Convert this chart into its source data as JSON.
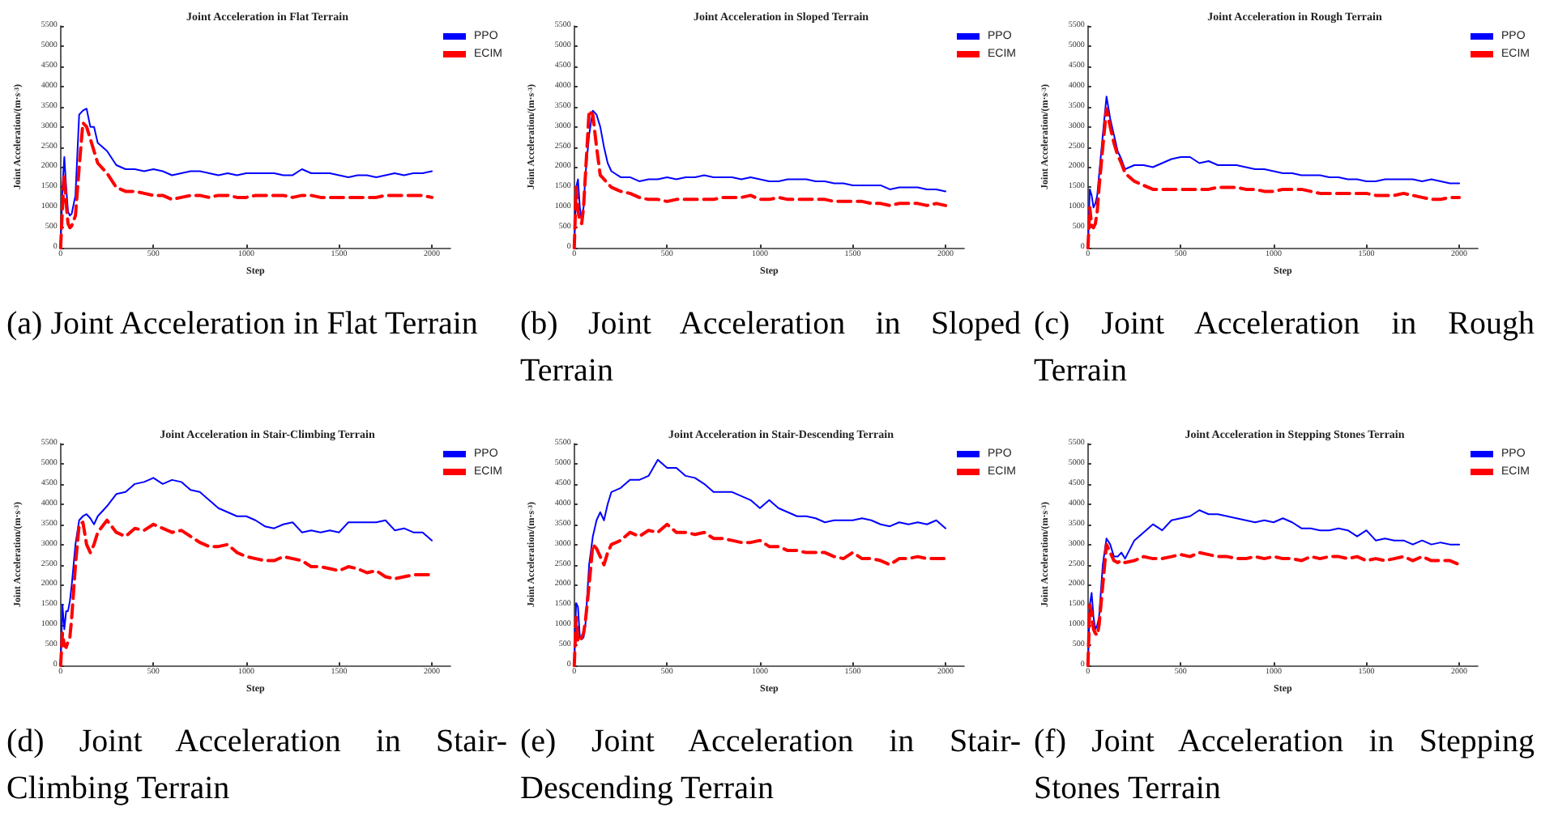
{
  "chart_data": [
    {
      "type": "line",
      "title": "Joint Acceleration in Flat Terrain",
      "xlabel": "Step",
      "ylabel": "Joint Acceleration/(m·s$^{-3}$)",
      "annotations": [
        "(a) Joint Acceleration in Flat Terrain"
      ],
      "xlim": [
        0,
        2100
      ],
      "xticks": [
        0,
        500,
        1000,
        1500,
        2000
      ],
      "ylim": [
        0,
        5500
      ],
      "yticks": [
        0,
        500,
        1000,
        1500,
        2000,
        2500,
        3000,
        3500,
        4000,
        4500,
        5000,
        5500
      ],
      "legend": "top right",
      "grid": false,
      "x": [
        0,
        10,
        20,
        30,
        40,
        50,
        60,
        80,
        100,
        120,
        140,
        160,
        180,
        200,
        250,
        300,
        350,
        400,
        450,
        500,
        550,
        600,
        650,
        700,
        750,
        800,
        850,
        900,
        950,
        1000,
        1050,
        1100,
        1150,
        1200,
        1250,
        1300,
        1350,
        1400,
        1450,
        1500,
        1550,
        1600,
        1650,
        1700,
        1750,
        1800,
        1850,
        1900,
        1950,
        2000
      ],
      "series": [
        {
          "name": "PPO",
          "color": "#0000ff",
          "line_style": "solid",
          "values": [
            0,
            1500,
            2250,
            1500,
            900,
            800,
            850,
            1300,
            3300,
            3400,
            3450,
            3000,
            3000,
            2600,
            2400,
            2050,
            1950,
            1950,
            1900,
            1950,
            1900,
            1800,
            1850,
            1900,
            1900,
            1850,
            1800,
            1850,
            1800,
            1850,
            1850,
            1850,
            1850,
            1800,
            1800,
            1950,
            1850,
            1850,
            1850,
            1800,
            1750,
            1800,
            1800,
            1750,
            1800,
            1850,
            1800,
            1850,
            1850,
            1900
          ]
        },
        {
          "name": "ECIM",
          "color": "#ff0000",
          "line_style": "dashed",
          "values": [
            0,
            1000,
            1800,
            1100,
            600,
            500,
            550,
            800,
            2000,
            3100,
            3000,
            2700,
            2400,
            2100,
            1850,
            1500,
            1400,
            1400,
            1350,
            1300,
            1300,
            1200,
            1250,
            1300,
            1300,
            1250,
            1300,
            1300,
            1250,
            1250,
            1300,
            1300,
            1300,
            1300,
            1250,
            1300,
            1300,
            1250,
            1250,
            1250,
            1250,
            1250,
            1250,
            1250,
            1300,
            1300,
            1300,
            1300,
            1300,
            1250
          ]
        }
      ]
    },
    {
      "type": "line",
      "title": "Joint Acceleration in Sloped Terrain",
      "xlabel": "Step",
      "ylabel": "Joint Acceleration/(m·s$^{-3}$)",
      "annotations": [
        "(b) Joint Acceleration in Sloped Terrain"
      ],
      "xlim": [
        0,
        2100
      ],
      "xticks": [
        0,
        500,
        1000,
        1500,
        2000
      ],
      "ylim": [
        0,
        5500
      ],
      "yticks": [
        0,
        500,
        1000,
        1500,
        2000,
        2500,
        3000,
        3500,
        4000,
        4500,
        5000,
        5500
      ],
      "legend": "top right",
      "grid": false,
      "x": [
        0,
        10,
        20,
        30,
        40,
        50,
        60,
        80,
        100,
        120,
        140,
        160,
        180,
        200,
        250,
        300,
        350,
        400,
        450,
        500,
        550,
        600,
        650,
        700,
        750,
        800,
        850,
        900,
        950,
        1000,
        1050,
        1100,
        1150,
        1200,
        1250,
        1300,
        1350,
        1400,
        1450,
        1500,
        1550,
        1600,
        1650,
        1700,
        1750,
        1800,
        1850,
        1900,
        1950,
        2000
      ],
      "series": [
        {
          "name": "PPO",
          "color": "#0000ff",
          "line_style": "solid",
          "values": [
            0,
            1500,
            1700,
            1000,
            700,
            1000,
            1800,
            2800,
            3400,
            3300,
            3000,
            2500,
            2100,
            1900,
            1750,
            1750,
            1650,
            1700,
            1700,
            1750,
            1700,
            1750,
            1750,
            1800,
            1750,
            1750,
            1750,
            1700,
            1750,
            1700,
            1650,
            1650,
            1700,
            1700,
            1700,
            1650,
            1650,
            1600,
            1600,
            1550,
            1550,
            1550,
            1550,
            1450,
            1500,
            1500,
            1500,
            1450,
            1450,
            1400
          ]
        },
        {
          "name": "ECIM",
          "color": "#ff0000",
          "line_style": "dashed",
          "values": [
            0,
            1500,
            900,
            700,
            600,
            1000,
            1800,
            3400,
            3300,
            2500,
            1800,
            1700,
            1600,
            1500,
            1400,
            1350,
            1250,
            1200,
            1200,
            1150,
            1200,
            1200,
            1200,
            1200,
            1200,
            1250,
            1250,
            1250,
            1300,
            1200,
            1200,
            1250,
            1200,
            1200,
            1200,
            1200,
            1200,
            1150,
            1150,
            1150,
            1150,
            1100,
            1100,
            1050,
            1100,
            1100,
            1100,
            1050,
            1100,
            1050
          ]
        }
      ]
    },
    {
      "type": "line",
      "title": "Joint Acceleration in Rough Terrain",
      "xlabel": "Step",
      "ylabel": "Joint Acceleration/(m·s$^{-3}$)",
      "annotations": [
        "(c) Joint Acceleration in Rough Terrain"
      ],
      "xlim": [
        0,
        2100
      ],
      "xticks": [
        0,
        500,
        1000,
        1500,
        2000
      ],
      "ylim": [
        0,
        5500
      ],
      "yticks": [
        0,
        500,
        1000,
        1500,
        2000,
        2500,
        3000,
        3500,
        4000,
        4500,
        5000,
        5500
      ],
      "legend": "top right",
      "grid": false,
      "x": [
        0,
        10,
        20,
        30,
        40,
        50,
        60,
        80,
        100,
        120,
        140,
        160,
        180,
        200,
        250,
        300,
        350,
        400,
        450,
        500,
        550,
        600,
        650,
        700,
        750,
        800,
        850,
        900,
        950,
        1000,
        1050,
        1100,
        1150,
        1200,
        1250,
        1300,
        1350,
        1400,
        1450,
        1500,
        1550,
        1600,
        1650,
        1700,
        1750,
        1800,
        1850,
        1900,
        1950,
        2000
      ],
      "series": [
        {
          "name": "PPO",
          "color": "#0000ff",
          "line_style": "solid",
          "values": [
            0,
            1450,
            1300,
            1000,
            1100,
            1300,
            1800,
            2800,
            3750,
            3200,
            2800,
            2400,
            2200,
            1950,
            2050,
            2050,
            2000,
            2100,
            2200,
            2250,
            2250,
            2100,
            2150,
            2050,
            2050,
            2050,
            2000,
            1950,
            1950,
            1900,
            1850,
            1850,
            1800,
            1800,
            1800,
            1750,
            1750,
            1700,
            1700,
            1650,
            1650,
            1700,
            1700,
            1700,
            1700,
            1650,
            1700,
            1650,
            1600,
            1600
          ]
        },
        {
          "name": "ECIM",
          "color": "#ff0000",
          "line_style": "dashed",
          "values": [
            0,
            1000,
            550,
            500,
            600,
            900,
            1500,
            2500,
            3450,
            3000,
            2600,
            2300,
            2100,
            1850,
            1650,
            1550,
            1450,
            1450,
            1450,
            1450,
            1450,
            1450,
            1450,
            1500,
            1500,
            1500,
            1450,
            1450,
            1400,
            1400,
            1450,
            1450,
            1450,
            1400,
            1350,
            1350,
            1350,
            1350,
            1350,
            1350,
            1300,
            1300,
            1300,
            1350,
            1300,
            1250,
            1200,
            1200,
            1250,
            1250
          ]
        }
      ]
    },
    {
      "type": "line",
      "title": "Joint Acceleration in Stair-Climbing Terrain",
      "xlabel": "Step",
      "ylabel": "Joint Acceleration/(m·s$^{-3}$)",
      "annotations": [
        "(d) Joint Acceleration in Stair-Climbing Terrain"
      ],
      "xlim": [
        0,
        2100
      ],
      "xticks": [
        0,
        500,
        1000,
        1500,
        2000
      ],
      "ylim": [
        0,
        5500
      ],
      "yticks": [
        0,
        500,
        1000,
        1500,
        2000,
        2500,
        3000,
        3500,
        4000,
        4500,
        5000,
        5500
      ],
      "legend": "top right",
      "grid": false,
      "x": [
        0,
        10,
        20,
        30,
        40,
        50,
        60,
        80,
        100,
        120,
        140,
        160,
        180,
        200,
        250,
        300,
        350,
        400,
        450,
        500,
        550,
        600,
        650,
        700,
        750,
        800,
        850,
        900,
        950,
        1000,
        1050,
        1100,
        1150,
        1200,
        1250,
        1300,
        1350,
        1400,
        1450,
        1500,
        1550,
        1600,
        1650,
        1700,
        1750,
        1800,
        1850,
        1900,
        1950,
        2000
      ],
      "series": [
        {
          "name": "PPO",
          "color": "#0000ff",
          "line_style": "solid",
          "values": [
            0,
            1500,
            900,
            1350,
            1350,
            1600,
            2000,
            3000,
            3600,
            3700,
            3750,
            3650,
            3500,
            3700,
            3950,
            4250,
            4300,
            4500,
            4550,
            4650,
            4500,
            4600,
            4550,
            4350,
            4300,
            4100,
            3900,
            3800,
            3700,
            3700,
            3600,
            3450,
            3400,
            3500,
            3550,
            3300,
            3350,
            3300,
            3350,
            3300,
            3550,
            3550,
            3550,
            3550,
            3600,
            3350,
            3400,
            3300,
            3300,
            3100
          ]
        },
        {
          "name": "ECIM",
          "color": "#ff0000",
          "line_style": "dashed",
          "values": [
            0,
            800,
            500,
            450,
            600,
            700,
            1200,
            2500,
            3500,
            3550,
            3000,
            2800,
            3000,
            3300,
            3600,
            3300,
            3200,
            3400,
            3350,
            3500,
            3400,
            3300,
            3350,
            3200,
            3050,
            2950,
            2950,
            3000,
            2800,
            2700,
            2650,
            2600,
            2600,
            2700,
            2650,
            2600,
            2450,
            2450,
            2400,
            2350,
            2450,
            2400,
            2300,
            2350,
            2200,
            2150,
            2200,
            2250,
            2250,
            2250
          ]
        }
      ]
    },
    {
      "type": "line",
      "title": "Joint Acceleration in Stair-Descending Terrain",
      "xlabel": "Step",
      "ylabel": "Joint Acceleration/(m·s$^{-3}$)",
      "annotations": [
        "(e) Joint Acceleration in Stair-Descending Terrain"
      ],
      "xlim": [
        0,
        2100
      ],
      "xticks": [
        0,
        500,
        1000,
        1500,
        2000
      ],
      "ylim": [
        0,
        5500
      ],
      "yticks": [
        0,
        500,
        1000,
        1500,
        2000,
        2500,
        3000,
        3500,
        4000,
        4500,
        5000,
        5500
      ],
      "legend": "top right",
      "grid": false,
      "x": [
        0,
        10,
        20,
        30,
        40,
        50,
        60,
        80,
        100,
        120,
        140,
        160,
        180,
        200,
        250,
        300,
        350,
        400,
        450,
        500,
        550,
        600,
        650,
        700,
        750,
        800,
        850,
        900,
        950,
        1000,
        1050,
        1100,
        1150,
        1200,
        1250,
        1300,
        1350,
        1400,
        1450,
        1500,
        1550,
        1600,
        1650,
        1700,
        1750,
        1800,
        1850,
        1900,
        1950,
        2000
      ],
      "series": [
        {
          "name": "PPO",
          "color": "#0000ff",
          "line_style": "solid",
          "values": [
            0,
            1550,
            1450,
            700,
            650,
            700,
            1000,
            2500,
            3200,
            3600,
            3800,
            3600,
            4000,
            4300,
            4400,
            4600,
            4600,
            4700,
            5100,
            4900,
            4900,
            4700,
            4650,
            4500,
            4300,
            4300,
            4300,
            4200,
            4100,
            3900,
            4100,
            3900,
            3800,
            3700,
            3700,
            3650,
            3550,
            3600,
            3600,
            3600,
            3650,
            3600,
            3500,
            3450,
            3550,
            3500,
            3550,
            3500,
            3600,
            3400
          ]
        },
        {
          "name": "ECIM",
          "color": "#ff0000",
          "line_style": "dashed",
          "values": [
            0,
            1200,
            600,
            600,
            700,
            800,
            1100,
            2000,
            3000,
            2900,
            2700,
            2500,
            2800,
            3000,
            3100,
            3300,
            3200,
            3350,
            3300,
            3500,
            3300,
            3300,
            3250,
            3300,
            3150,
            3150,
            3100,
            3050,
            3050,
            3100,
            2950,
            2950,
            2850,
            2850,
            2800,
            2800,
            2800,
            2700,
            2650,
            2800,
            2650,
            2650,
            2600,
            2500,
            2650,
            2650,
            2700,
            2650,
            2650,
            2650
          ]
        }
      ]
    },
    {
      "type": "line",
      "title": "Joint Acceleration in Stepping Stones Terrain",
      "xlabel": "Step",
      "ylabel": "Joint Acceleration/(m·s$^{-3}$)",
      "annotations": [
        "(f) Joint Acceleration in Stepping Stones Terrain"
      ],
      "xlim": [
        0,
        2100
      ],
      "xticks": [
        0,
        500,
        1000,
        1500,
        2000
      ],
      "ylim": [
        0,
        5500
      ],
      "yticks": [
        0,
        500,
        1000,
        1500,
        2000,
        2500,
        3000,
        3500,
        4000,
        4500,
        5000,
        5500
      ],
      "legend": "top right",
      "grid": false,
      "x": [
        0,
        10,
        20,
        30,
        40,
        50,
        60,
        80,
        100,
        120,
        140,
        160,
        180,
        200,
        250,
        300,
        350,
        400,
        450,
        500,
        550,
        600,
        650,
        700,
        750,
        800,
        850,
        900,
        950,
        1000,
        1050,
        1100,
        1150,
        1200,
        1250,
        1300,
        1350,
        1400,
        1450,
        1500,
        1550,
        1600,
        1650,
        1700,
        1750,
        1800,
        1850,
        1900,
        1950,
        2000
      ],
      "series": [
        {
          "name": "PPO",
          "color": "#0000ff",
          "line_style": "solid",
          "values": [
            0,
            1500,
            1800,
            1200,
            900,
            1000,
            1200,
            2500,
            3150,
            3000,
            2700,
            2700,
            2800,
            2650,
            3100,
            3300,
            3500,
            3350,
            3600,
            3650,
            3700,
            3850,
            3750,
            3750,
            3700,
            3650,
            3600,
            3550,
            3600,
            3550,
            3650,
            3550,
            3400,
            3400,
            3350,
            3350,
            3400,
            3350,
            3200,
            3350,
            3100,
            3150,
            3100,
            3100,
            3000,
            3100,
            3000,
            3050,
            3000,
            3000
          ]
        },
        {
          "name": "ECIM",
          "color": "#ff0000",
          "line_style": "dashed",
          "values": [
            0,
            1500,
            1300,
            900,
            800,
            750,
            1000,
            2000,
            3000,
            2800,
            2600,
            2550,
            2600,
            2550,
            2600,
            2700,
            2650,
            2650,
            2700,
            2750,
            2700,
            2800,
            2750,
            2700,
            2700,
            2650,
            2650,
            2700,
            2650,
            2700,
            2650,
            2650,
            2600,
            2700,
            2650,
            2700,
            2700,
            2650,
            2700,
            2600,
            2650,
            2600,
            2650,
            2700,
            2600,
            2700,
            2600,
            2600,
            2600,
            2500
          ]
        }
      ]
    }
  ]
}
